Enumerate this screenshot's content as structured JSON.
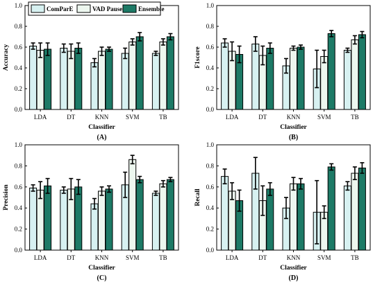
{
  "legend": {
    "items": [
      {
        "name": "ComParE",
        "color": "#d7f1f1"
      },
      {
        "name": "VAD Pause",
        "color": "#edf7ef"
      },
      {
        "name": "Ensemble",
        "color": "#1d7a66"
      }
    ]
  },
  "chart_data": [
    {
      "type": "bar",
      "panel_label": "(A)",
      "xlabel": "Classifier",
      "ylabel": "Accuracy",
      "categories": [
        "LDA",
        "DT",
        "KNN",
        "SVM",
        "TB"
      ],
      "ylim": [
        0.0,
        1.0
      ],
      "yticks": [
        "0.0",
        "0.2",
        "0.4",
        "0.6",
        "0.8",
        "1.0"
      ],
      "series": [
        {
          "name": "ComParE",
          "values": [
            0.61,
            0.59,
            0.45,
            0.54,
            0.54
          ],
          "errors": [
            0.03,
            0.04,
            0.04,
            0.05,
            0.02
          ]
        },
        {
          "name": "VAD Pause",
          "values": [
            0.57,
            0.56,
            0.56,
            0.65,
            0.65
          ],
          "errors": [
            0.07,
            0.07,
            0.04,
            0.03,
            0.03
          ]
        },
        {
          "name": "Ensemble",
          "values": [
            0.58,
            0.59,
            0.58,
            0.7,
            0.7
          ],
          "errors": [
            0.06,
            0.05,
            0.02,
            0.04,
            0.03
          ]
        }
      ]
    },
    {
      "type": "bar",
      "panel_label": "(B)",
      "xlabel": "Classifier",
      "ylabel": "F1score",
      "categories": [
        "LDA",
        "DT",
        "KNN",
        "SVM",
        "TB"
      ],
      "ylim": [
        0.0,
        1.0
      ],
      "yticks": [
        "0.0",
        "0.2",
        "0.4",
        "0.6",
        "0.8",
        "1.0"
      ],
      "series": [
        {
          "name": "ComParE",
          "values": [
            0.64,
            0.63,
            0.42,
            0.39,
            0.57
          ],
          "errors": [
            0.04,
            0.07,
            0.07,
            0.18,
            0.02
          ]
        },
        {
          "name": "VAD Pause",
          "values": [
            0.56,
            0.52,
            0.59,
            0.51,
            0.67
          ],
          "errors": [
            0.09,
            0.09,
            0.02,
            0.06,
            0.04
          ]
        },
        {
          "name": "Ensemble",
          "values": [
            0.53,
            0.59,
            0.6,
            0.73,
            0.72
          ],
          "errors": [
            0.08,
            0.05,
            0.02,
            0.03,
            0.03
          ]
        }
      ]
    },
    {
      "type": "bar",
      "panel_label": "(C)",
      "xlabel": "Classifier",
      "ylabel": "Precision",
      "categories": [
        "LDA",
        "DT",
        "KNN",
        "SVM",
        "TB"
      ],
      "ylim": [
        0.0,
        1.0
      ],
      "yticks": [
        "0.0",
        "0.2",
        "0.4",
        "0.6",
        "0.8",
        "1.0"
      ],
      "series": [
        {
          "name": "ComParE",
          "values": [
            0.59,
            0.57,
            0.44,
            0.62,
            0.54
          ],
          "errors": [
            0.03,
            0.03,
            0.05,
            0.12,
            0.02
          ]
        },
        {
          "name": "VAD Pause",
          "values": [
            0.57,
            0.58,
            0.56,
            0.86,
            0.63
          ],
          "errors": [
            0.08,
            0.1,
            0.04,
            0.04,
            0.03
          ]
        },
        {
          "name": "Ensemble",
          "values": [
            0.61,
            0.6,
            0.58,
            0.67,
            0.67
          ],
          "errors": [
            0.07,
            0.07,
            0.03,
            0.03,
            0.02
          ]
        }
      ]
    },
    {
      "type": "bar",
      "panel_label": "(D)",
      "xlabel": "Classifier",
      "ylabel": "Recall",
      "categories": [
        "LDA",
        "DT",
        "KNN",
        "SVM",
        "TB"
      ],
      "ylim": [
        0.0,
        1.0
      ],
      "yticks": [
        "0.0",
        "0.2",
        "0.4",
        "0.6",
        "0.8",
        "1.0"
      ],
      "series": [
        {
          "name": "ComParE",
          "values": [
            0.7,
            0.73,
            0.4,
            0.36,
            0.61
          ],
          "errors": [
            0.07,
            0.15,
            0.1,
            0.3,
            0.04
          ]
        },
        {
          "name": "VAD Pause",
          "values": [
            0.56,
            0.47,
            0.63,
            0.36,
            0.73
          ],
          "errors": [
            0.08,
            0.14,
            0.06,
            0.06,
            0.06
          ]
        },
        {
          "name": "Ensemble",
          "values": [
            0.47,
            0.58,
            0.63,
            0.79,
            0.78
          ],
          "errors": [
            0.1,
            0.06,
            0.05,
            0.03,
            0.05
          ]
        }
      ]
    }
  ]
}
